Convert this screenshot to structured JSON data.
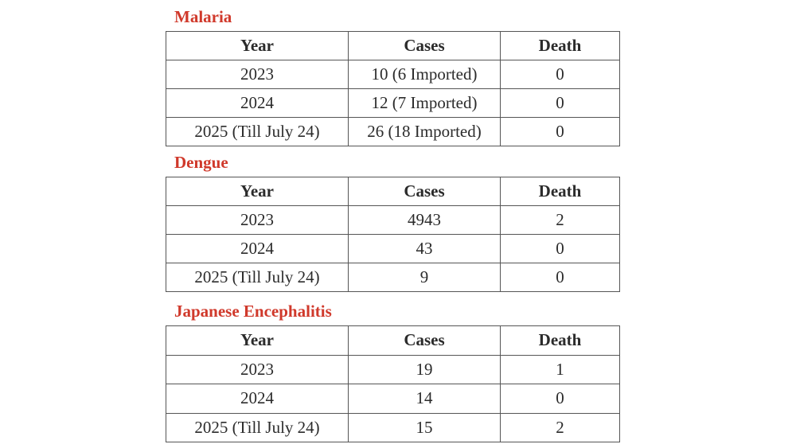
{
  "headers": {
    "year": "Year",
    "cases": "Cases",
    "death": "Death"
  },
  "sections": [
    {
      "title": "Malaria",
      "rows": [
        {
          "year": "2023",
          "cases": "10 (6 Imported)",
          "death": "0"
        },
        {
          "year": "2024",
          "cases": "12 (7 Imported)",
          "death": "0"
        },
        {
          "year": "2025 (Till July 24)",
          "cases": "26 (18 Imported)",
          "death": "0"
        }
      ]
    },
    {
      "title": "Dengue",
      "rows": [
        {
          "year": "2023",
          "cases": "4943",
          "death": "2"
        },
        {
          "year": "2024",
          "cases": "43",
          "death": "0"
        },
        {
          "year": "2025 (Till July 24)",
          "cases": "9",
          "death": "0"
        }
      ]
    },
    {
      "title": "Japanese Encephalitis",
      "rows": [
        {
          "year": "2023",
          "cases": "19",
          "death": "1"
        },
        {
          "year": "2024",
          "cases": "14",
          "death": "0"
        },
        {
          "year": "2025 (Till July 24)",
          "cases": "15",
          "death": "2"
        }
      ]
    }
  ],
  "colors": {
    "heading": "#d0392b",
    "text": "#2b2b2b",
    "border": "#555555"
  }
}
